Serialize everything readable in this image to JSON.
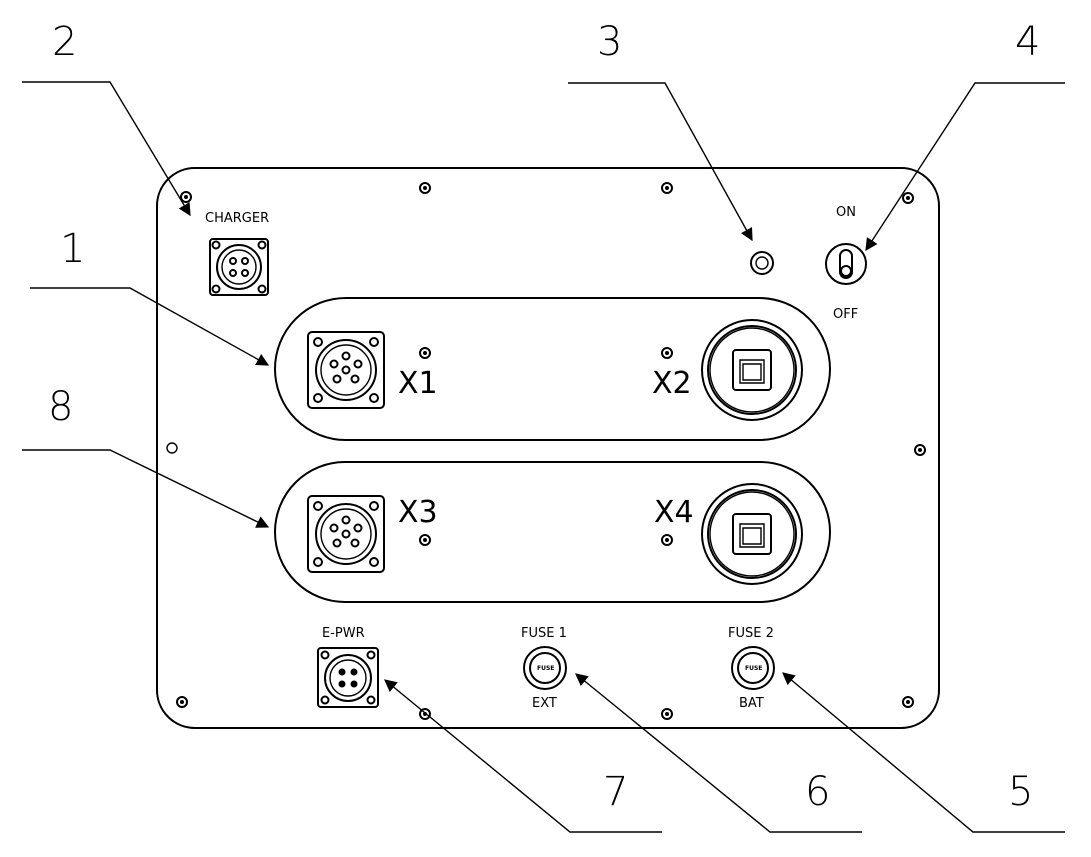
{
  "labels": {
    "charger": "CHARGER",
    "switch_on": "ON",
    "switch_off": "OFF",
    "x1": "X1",
    "x2": "X2",
    "x3": "X3",
    "x4": "X4",
    "epwr": "E-PWR",
    "fuse1": "FUSE 1",
    "fuse1_sub": "EXT",
    "fuse2": "FUSE 2",
    "fuse2_sub": "BAT",
    "fuse_cap": "FUSE"
  },
  "callouts": {
    "c1": "1",
    "c2": "2",
    "c3": "3",
    "c4": "4",
    "c5": "5",
    "c6": "6",
    "c7": "7",
    "c8": "8"
  }
}
